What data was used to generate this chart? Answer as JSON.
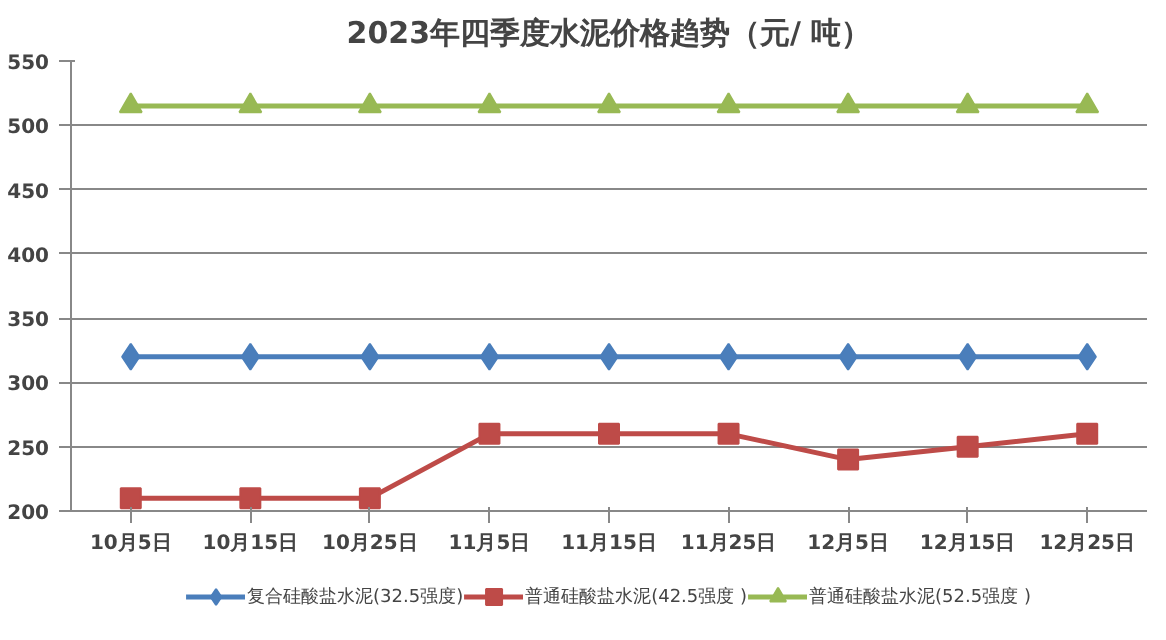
{
  "chart_data": {
    "type": "line",
    "title": "2023年四季度水泥价格趋势（元/ 吨）",
    "categories": [
      "10月5日",
      "10月15日",
      "10月25日",
      "11月5日",
      "11月15日",
      "11月25日",
      "12月5日",
      "12月15日",
      "12月25日"
    ],
    "series": [
      {
        "name": "复合硅酸盐水泥(32.5强度)",
        "color": "#4a7ebb",
        "marker": "diamond",
        "values": [
          320,
          320,
          320,
          320,
          320,
          320,
          320,
          320,
          320
        ]
      },
      {
        "name": "普通硅酸盐水泥(42.5强度 )",
        "color": "#be4b48",
        "marker": "square",
        "values": [
          210,
          210,
          210,
          260,
          260,
          260,
          240,
          250,
          260
        ]
      },
      {
        "name": "普通硅酸盐水泥(52.5强度 )",
        "color": "#98b954",
        "marker": "triangle",
        "values": [
          515,
          515,
          515,
          515,
          515,
          515,
          515,
          515,
          515
        ]
      }
    ],
    "ylim": [
      200,
      550
    ],
    "yticks": [
      200,
      250,
      300,
      350,
      400,
      450,
      500,
      550
    ],
    "grid": "y",
    "legend": "bottom",
    "line_style": "solid"
  }
}
